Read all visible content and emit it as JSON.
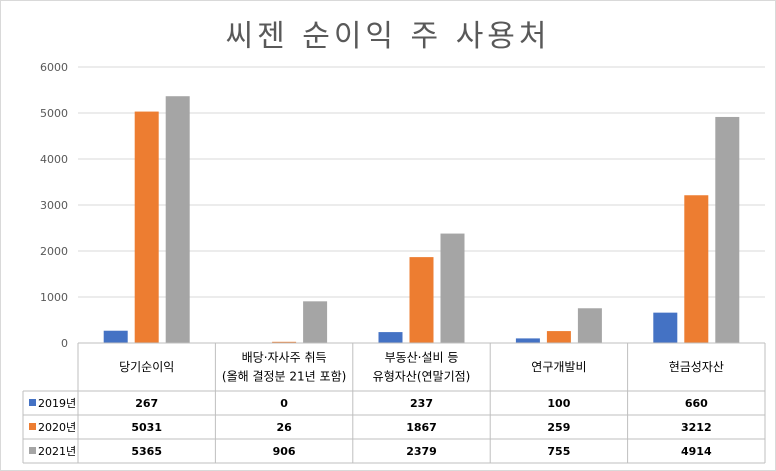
{
  "chart_data": {
    "type": "bar",
    "title": "씨젠 순이익 주 사용처",
    "xlabel": "",
    "ylabel": "",
    "ylim": [
      0,
      6000
    ],
    "yticks": [
      0,
      1000,
      2000,
      3000,
      4000,
      5000,
      6000
    ],
    "grid": true,
    "legend": "data-table",
    "categories": [
      [
        "당기순이익"
      ],
      [
        "배당·자사주 취득",
        "(올해 결정분 21년 포함)"
      ],
      [
        "부동산·설비 등",
        "유형자산(연말기점)"
      ],
      [
        "연구개발비"
      ],
      [
        "현금성자산"
      ]
    ],
    "series": [
      {
        "name": "2019년",
        "color": "#4472c4",
        "values": [
          267,
          0,
          237,
          100,
          660
        ]
      },
      {
        "name": "2020년",
        "color": "#ed7d31",
        "values": [
          5031,
          26,
          1867,
          259,
          3212
        ]
      },
      {
        "name": "2021년",
        "color": "#a5a5a5",
        "values": [
          5365,
          906,
          2379,
          755,
          4914
        ]
      }
    ]
  }
}
